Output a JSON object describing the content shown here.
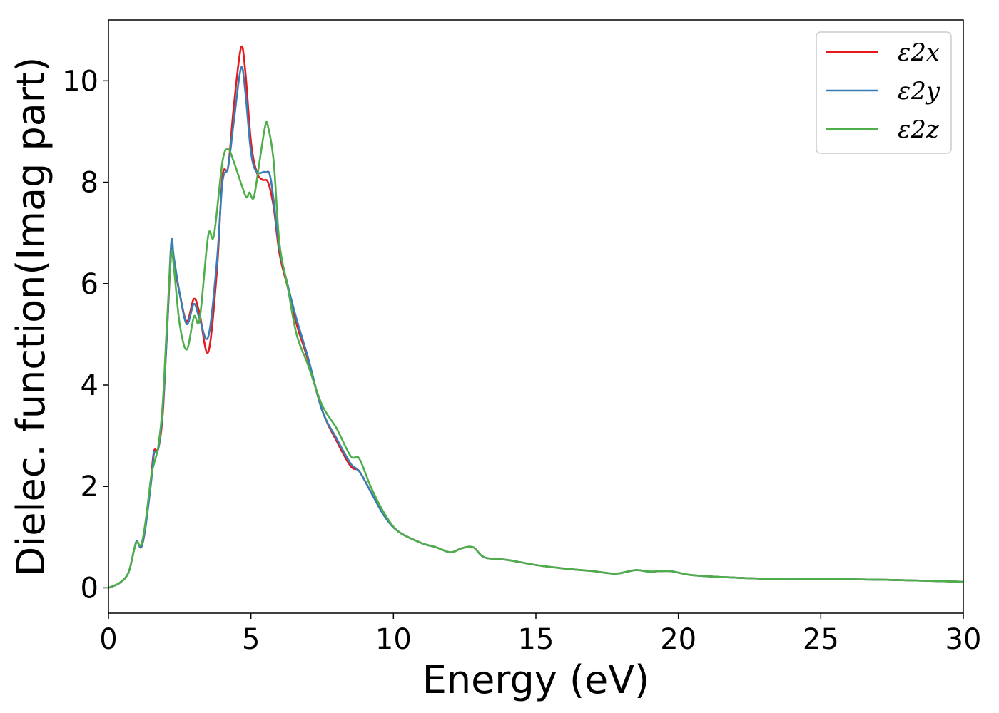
{
  "chart_data": {
    "type": "line",
    "xlabel": "Energy (eV)",
    "ylabel": "Dielec. function(Imag part)",
    "xlim": [
      0,
      30
    ],
    "ylim": [
      -0.5,
      11.2
    ],
    "xticks": [
      0,
      5,
      10,
      15,
      20,
      25,
      30
    ],
    "yticks": [
      0,
      2,
      4,
      6,
      8,
      10
    ],
    "grid": false,
    "legend": "top-right",
    "series": [
      {
        "name": "ε2x",
        "color": "#e41a1c",
        "points": [
          [
            0,
            0
          ],
          [
            0.4,
            0.1
          ],
          [
            0.7,
            0.3
          ],
          [
            0.9,
            0.75
          ],
          [
            1.0,
            0.92
          ],
          [
            1.15,
            0.8
          ],
          [
            1.3,
            1.2
          ],
          [
            1.5,
            2.2
          ],
          [
            1.6,
            2.7
          ],
          [
            1.75,
            2.75
          ],
          [
            1.9,
            3.4
          ],
          [
            2.05,
            5.0
          ],
          [
            2.2,
            6.6
          ],
          [
            2.3,
            6.4
          ],
          [
            2.5,
            5.8
          ],
          [
            2.75,
            5.25
          ],
          [
            3.0,
            5.7
          ],
          [
            3.2,
            5.4
          ],
          [
            3.5,
            4.65
          ],
          [
            3.8,
            6.2
          ],
          [
            4.0,
            8.1
          ],
          [
            4.2,
            8.3
          ],
          [
            4.4,
            9.5
          ],
          [
            4.65,
            10.65
          ],
          [
            4.8,
            10.2
          ],
          [
            5.0,
            8.8
          ],
          [
            5.2,
            8.2
          ],
          [
            5.4,
            8.05
          ],
          [
            5.6,
            8.0
          ],
          [
            5.8,
            7.5
          ],
          [
            6.0,
            6.6
          ],
          [
            6.3,
            5.9
          ],
          [
            6.6,
            5.2
          ],
          [
            7.0,
            4.5
          ],
          [
            7.5,
            3.5
          ],
          [
            8.0,
            2.9
          ],
          [
            8.5,
            2.4
          ],
          [
            8.8,
            2.3
          ],
          [
            9.2,
            1.9
          ],
          [
            9.7,
            1.4
          ],
          [
            10.2,
            1.1
          ],
          [
            11.0,
            0.88
          ],
          [
            11.5,
            0.8
          ],
          [
            12.0,
            0.7
          ],
          [
            12.4,
            0.78
          ],
          [
            12.8,
            0.8
          ],
          [
            13.2,
            0.6
          ],
          [
            14.0,
            0.55
          ],
          [
            15.0,
            0.45
          ],
          [
            16.0,
            0.38
          ],
          [
            17.0,
            0.33
          ],
          [
            17.8,
            0.28
          ],
          [
            18.5,
            0.35
          ],
          [
            19.0,
            0.32
          ],
          [
            19.7,
            0.33
          ],
          [
            20.5,
            0.25
          ],
          [
            22.0,
            0.2
          ],
          [
            24.0,
            0.17
          ],
          [
            25.0,
            0.18
          ],
          [
            26.0,
            0.17
          ],
          [
            28.0,
            0.15
          ],
          [
            30.0,
            0.12
          ]
        ]
      },
      {
        "name": "ε2y",
        "color": "#377eb8",
        "points": [
          [
            0,
            0
          ],
          [
            0.4,
            0.1
          ],
          [
            0.7,
            0.3
          ],
          [
            0.9,
            0.75
          ],
          [
            1.0,
            0.92
          ],
          [
            1.15,
            0.8
          ],
          [
            1.3,
            1.2
          ],
          [
            1.5,
            2.1
          ],
          [
            1.6,
            2.65
          ],
          [
            1.75,
            2.75
          ],
          [
            1.9,
            3.5
          ],
          [
            2.05,
            5.0
          ],
          [
            2.2,
            6.8
          ],
          [
            2.3,
            6.5
          ],
          [
            2.5,
            5.8
          ],
          [
            2.75,
            5.2
          ],
          [
            3.0,
            5.6
          ],
          [
            3.2,
            5.3
          ],
          [
            3.5,
            4.95
          ],
          [
            3.8,
            6.4
          ],
          [
            4.0,
            8.0
          ],
          [
            4.2,
            8.3
          ],
          [
            4.4,
            9.2
          ],
          [
            4.65,
            10.25
          ],
          [
            4.8,
            9.8
          ],
          [
            5.0,
            8.6
          ],
          [
            5.2,
            8.2
          ],
          [
            5.5,
            8.2
          ],
          [
            5.7,
            8.05
          ],
          [
            6.0,
            6.7
          ],
          [
            6.3,
            5.95
          ],
          [
            6.6,
            5.3
          ],
          [
            7.0,
            4.55
          ],
          [
            7.5,
            3.5
          ],
          [
            8.0,
            2.95
          ],
          [
            8.5,
            2.45
          ],
          [
            8.8,
            2.3
          ],
          [
            9.2,
            1.9
          ],
          [
            9.7,
            1.4
          ],
          [
            10.2,
            1.1
          ],
          [
            11.0,
            0.88
          ],
          [
            11.5,
            0.8
          ],
          [
            12.0,
            0.7
          ],
          [
            12.4,
            0.78
          ],
          [
            12.8,
            0.8
          ],
          [
            13.2,
            0.6
          ],
          [
            14.0,
            0.55
          ],
          [
            15.0,
            0.45
          ],
          [
            16.0,
            0.38
          ],
          [
            17.0,
            0.33
          ],
          [
            17.8,
            0.28
          ],
          [
            18.5,
            0.35
          ],
          [
            19.0,
            0.32
          ],
          [
            19.7,
            0.33
          ],
          [
            20.5,
            0.25
          ],
          [
            22.0,
            0.2
          ],
          [
            24.0,
            0.17
          ],
          [
            25.0,
            0.18
          ],
          [
            26.0,
            0.17
          ],
          [
            28.0,
            0.15
          ],
          [
            30.0,
            0.12
          ]
        ]
      },
      {
        "name": "ε2z",
        "color": "#4daf4a",
        "points": [
          [
            0,
            0
          ],
          [
            0.4,
            0.1
          ],
          [
            0.7,
            0.3
          ],
          [
            0.9,
            0.75
          ],
          [
            1.0,
            0.9
          ],
          [
            1.15,
            0.85
          ],
          [
            1.3,
            1.3
          ],
          [
            1.5,
            2.2
          ],
          [
            1.6,
            2.45
          ],
          [
            1.75,
            2.8
          ],
          [
            1.9,
            3.6
          ],
          [
            2.05,
            5.2
          ],
          [
            2.2,
            6.6
          ],
          [
            2.3,
            6.3
          ],
          [
            2.5,
            5.2
          ],
          [
            2.75,
            4.7
          ],
          [
            3.0,
            5.35
          ],
          [
            3.2,
            5.3
          ],
          [
            3.5,
            6.95
          ],
          [
            3.7,
            6.95
          ],
          [
            4.0,
            8.4
          ],
          [
            4.2,
            8.65
          ],
          [
            4.4,
            8.4
          ],
          [
            4.7,
            7.9
          ],
          [
            4.85,
            7.7
          ],
          [
            4.95,
            7.8
          ],
          [
            5.1,
            7.7
          ],
          [
            5.3,
            8.4
          ],
          [
            5.5,
            9.1
          ],
          [
            5.6,
            9.1
          ],
          [
            5.8,
            8.4
          ],
          [
            6.0,
            6.8
          ],
          [
            6.3,
            5.9
          ],
          [
            6.6,
            5.0
          ],
          [
            7.0,
            4.4
          ],
          [
            7.5,
            3.6
          ],
          [
            8.0,
            3.15
          ],
          [
            8.5,
            2.6
          ],
          [
            8.8,
            2.55
          ],
          [
            9.2,
            2.0
          ],
          [
            9.7,
            1.45
          ],
          [
            10.2,
            1.1
          ],
          [
            11.0,
            0.88
          ],
          [
            11.5,
            0.8
          ],
          [
            12.0,
            0.7
          ],
          [
            12.4,
            0.78
          ],
          [
            12.8,
            0.8
          ],
          [
            13.2,
            0.6
          ],
          [
            14.0,
            0.55
          ],
          [
            15.0,
            0.45
          ],
          [
            16.0,
            0.38
          ],
          [
            17.0,
            0.33
          ],
          [
            17.8,
            0.28
          ],
          [
            18.5,
            0.35
          ],
          [
            19.0,
            0.32
          ],
          [
            19.7,
            0.33
          ],
          [
            20.5,
            0.25
          ],
          [
            22.0,
            0.2
          ],
          [
            24.0,
            0.17
          ],
          [
            25.0,
            0.18
          ],
          [
            26.0,
            0.17
          ],
          [
            28.0,
            0.15
          ],
          [
            30.0,
            0.12
          ]
        ]
      }
    ]
  }
}
